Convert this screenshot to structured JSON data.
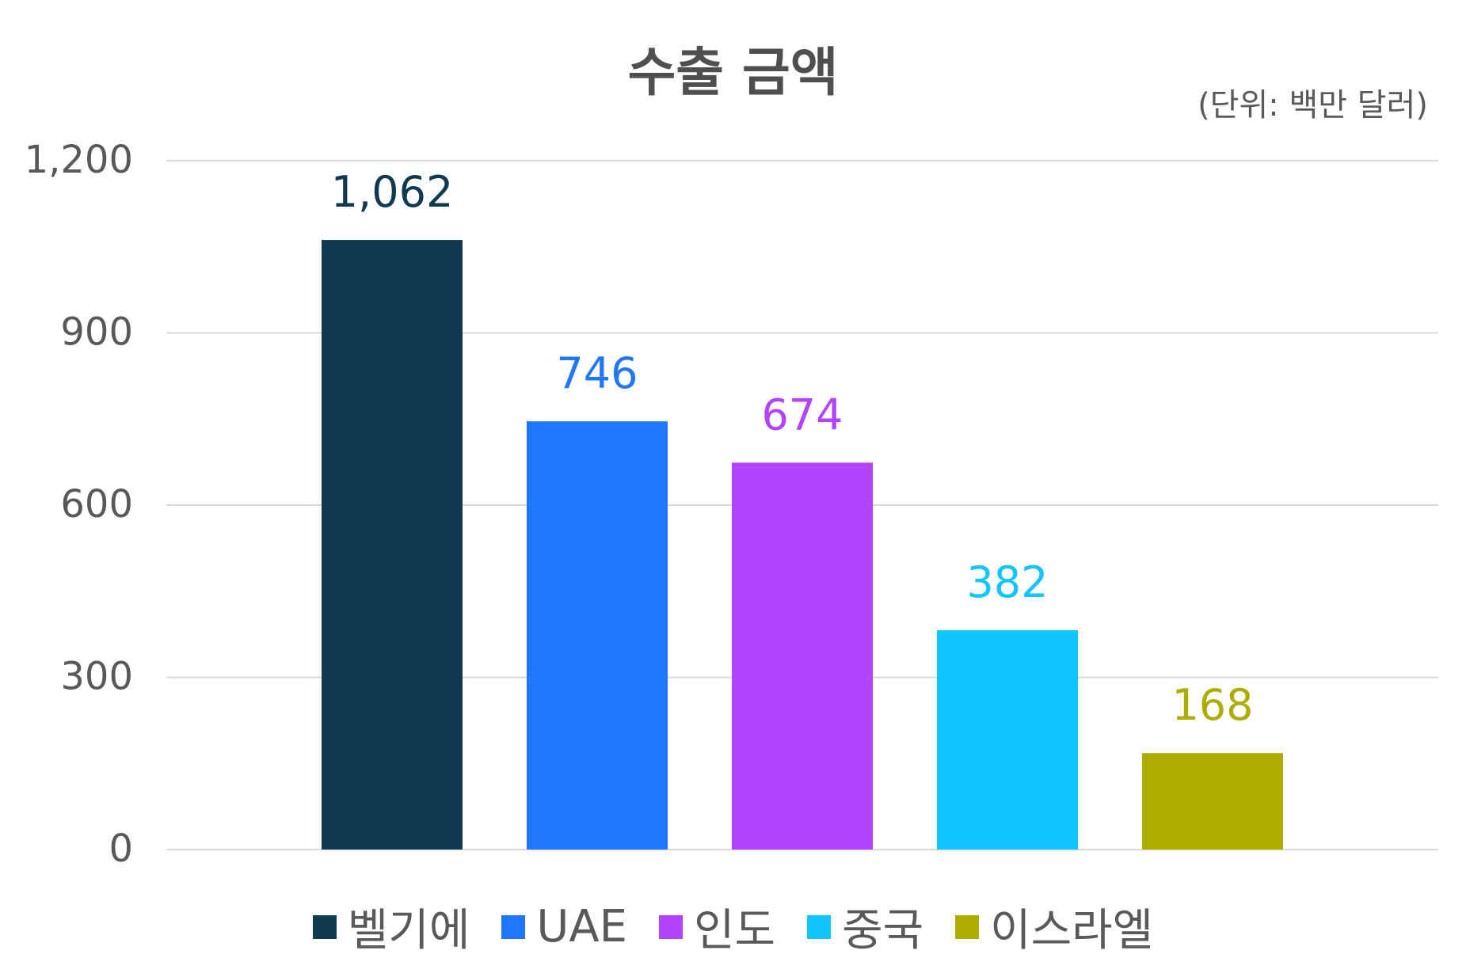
{
  "chart_data": {
    "type": "bar",
    "title": "수출 금액",
    "unit_note": "(단위: 백만 달러)",
    "categories": [
      "벨기에",
      "UAE",
      "인도",
      "중국",
      "이스라엘"
    ],
    "values": [
      1062,
      746,
      674,
      382,
      168
    ],
    "data_labels": [
      "1,062",
      "746",
      "674",
      "382",
      "168"
    ],
    "colors": [
      "#0f3a50",
      "#2177ff",
      "#b243ff",
      "#11c5ff",
      "#adad00"
    ],
    "ylim": [
      0,
      1200
    ],
    "yticks": [
      0,
      300,
      600,
      900,
      1200
    ],
    "ytick_labels": [
      "0",
      "300",
      "600",
      "900",
      "1,200"
    ],
    "xlabel": "",
    "ylabel": "",
    "grid": true,
    "legend_position": "bottom"
  }
}
